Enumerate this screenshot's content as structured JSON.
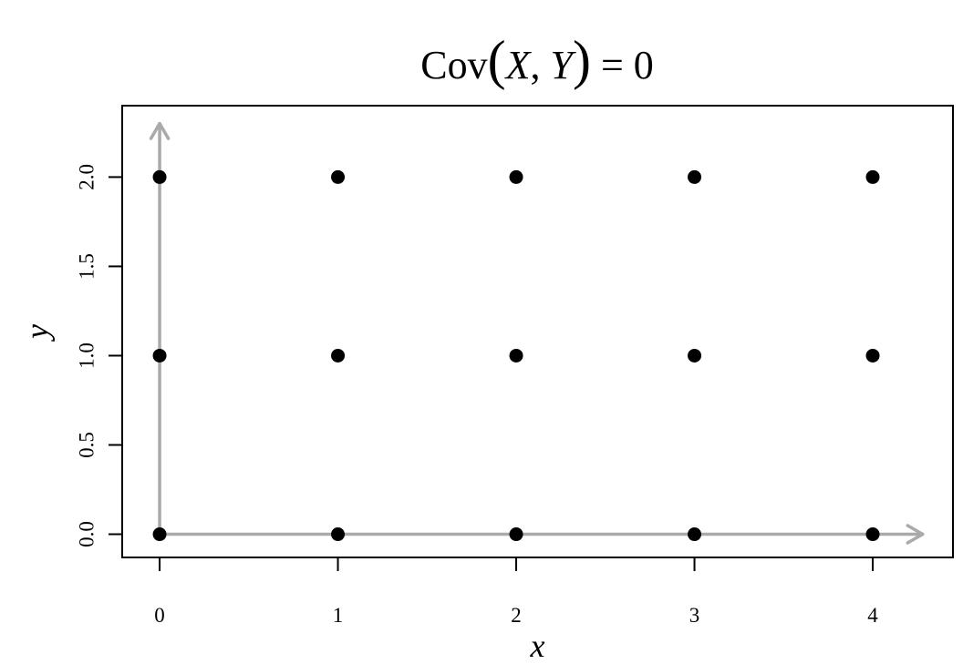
{
  "chart_data": {
    "type": "scatter",
    "title": {
      "prefix": "Cov",
      "open_paren": "(",
      "var1": "X",
      "sep": ", ",
      "var2": "Y",
      "close_paren": ")",
      "suffix": " = 0"
    },
    "xlabel": "x",
    "ylabel": "y",
    "xlim": [
      -0.21,
      4.45
    ],
    "ylim": [
      -0.13,
      2.4
    ],
    "xticks": [
      0,
      1,
      2,
      3,
      4
    ],
    "xtick_labels": [
      "0",
      "1",
      "2",
      "3",
      "4"
    ],
    "yticks": [
      0,
      0.5,
      1,
      1.5,
      2
    ],
    "ytick_labels": [
      "0.0",
      "0.5",
      "1.0",
      "1.5",
      "2.0"
    ],
    "grid": false,
    "points": {
      "x": [
        0,
        1,
        2,
        3,
        4,
        0,
        1,
        2,
        3,
        4,
        0,
        1,
        2,
        3,
        4
      ],
      "y": [
        0,
        0,
        0,
        0,
        0,
        1,
        1,
        1,
        1,
        1,
        2,
        2,
        2,
        2,
        2
      ]
    },
    "arrows": [
      {
        "name": "x-axis-arrow",
        "from": [
          0,
          0
        ],
        "to": [
          4.28,
          0
        ]
      },
      {
        "name": "y-axis-arrow",
        "from": [
          0,
          0
        ],
        "to": [
          0,
          2.3
        ]
      }
    ],
    "colors": {
      "points": "#000000",
      "arrows": "#aaaaaa",
      "frame": "#000000"
    }
  }
}
